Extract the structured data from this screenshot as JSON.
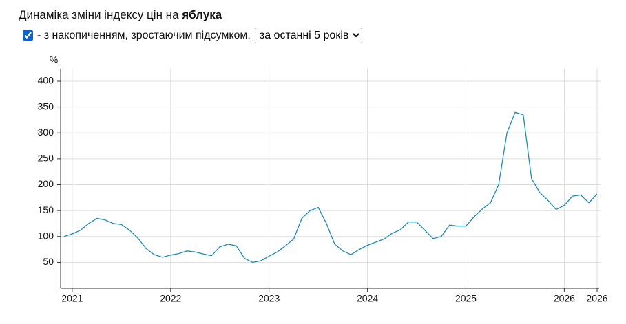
{
  "header": {
    "title": "Динаміка зміни індексу цін на",
    "product": "яблука"
  },
  "controls": {
    "checked": true,
    "checkbox_label": "- з накопиченням, зростаючим підсумком,",
    "period": "за останні 5 років"
  },
  "chart_data": {
    "type": "line",
    "y_label": "%",
    "color": "#1a8cb8",
    "grid": true,
    "x": [
      2020.917,
      2021,
      2021.083,
      2021.167,
      2021.25,
      2021.333,
      2021.417,
      2021.5,
      2021.583,
      2021.667,
      2021.75,
      2021.833,
      2021.917,
      2022,
      2022.083,
      2022.167,
      2022.25,
      2022.333,
      2022.417,
      2022.5,
      2022.583,
      2022.667,
      2022.75,
      2022.833,
      2022.917,
      2023,
      2023.083,
      2023.167,
      2023.25,
      2023.333,
      2023.417,
      2023.5,
      2023.583,
      2023.667,
      2023.75,
      2023.833,
      2023.917,
      2024,
      2024.083,
      2024.167,
      2024.25,
      2024.333,
      2024.417,
      2024.5,
      2024.583,
      2024.667,
      2024.75,
      2024.833,
      2024.917,
      2025,
      2025.083,
      2025.167,
      2025.25,
      2025.333,
      2025.417,
      2025.5,
      2025.583,
      2025.667,
      2025.75,
      2025.833,
      2025.917,
      2026,
      2026.083,
      2026.167,
      2026.25,
      2026.333
    ],
    "values": [
      100,
      105,
      112,
      125,
      135,
      132,
      125,
      123,
      112,
      97,
      77,
      65,
      60,
      64,
      67,
      72,
      70,
      66,
      63,
      80,
      85,
      82,
      58,
      50,
      53,
      62,
      70,
      82,
      95,
      135,
      150,
      156,
      125,
      85,
      72,
      65,
      75,
      83,
      89,
      95,
      106,
      113,
      128,
      128,
      112,
      96,
      100,
      122,
      120,
      120,
      138,
      153,
      165,
      200,
      300,
      340,
      335,
      212,
      185,
      170,
      152,
      160,
      178,
      180,
      165,
      182
    ],
    "xlim": [
      2020.917,
      2026.333
    ],
    "xticks": [
      2021,
      2022,
      2023,
      2024,
      2025,
      2026,
      {
        "value": 2026.333,
        "label": "2026"
      }
    ],
    "ylim": [
      0,
      400
    ],
    "yticks": [
      50,
      100,
      150,
      200,
      250,
      300,
      350,
      400
    ]
  }
}
